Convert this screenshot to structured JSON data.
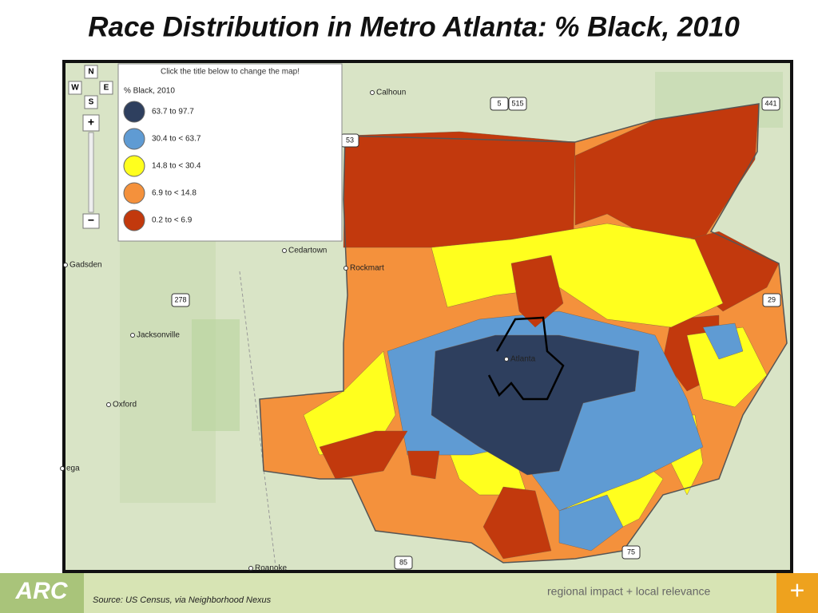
{
  "title": "Race Distribution in Metro Atlanta: % Black, 2010",
  "map": {
    "instruction": "Click the title below to change the map!",
    "legend_title": "%  Black, 2010",
    "legend": [
      {
        "label": "63.7 to 97.7",
        "color": "#2e3f5e"
      },
      {
        "label": "30.4 to  < 63.7",
        "color": "#5f9bd3"
      },
      {
        "label": "14.8 to  < 30.4",
        "color": "#ffff1e"
      },
      {
        "label": "6.9 to  < 14.8",
        "color": "#f4913c"
      },
      {
        "label": "0.2 to  < 6.9",
        "color": "#c2390d"
      }
    ],
    "nav": [
      "N",
      "W",
      "E",
      "S"
    ],
    "places": [
      "Calhoun",
      "Cedartown",
      "Rockmart",
      "Gadsden",
      "Jacksonville",
      "Oxford",
      "Roanoke",
      "Atlanta",
      "ega"
    ],
    "highways": [
      "278",
      "5",
      "515",
      "441",
      "53",
      "29",
      "75",
      "85"
    ]
  },
  "footer": {
    "logo": "ARC",
    "source": "Source: US Census, via Neighborhood Nexus",
    "tagline": "regional impact + local relevance",
    "button": "+"
  }
}
